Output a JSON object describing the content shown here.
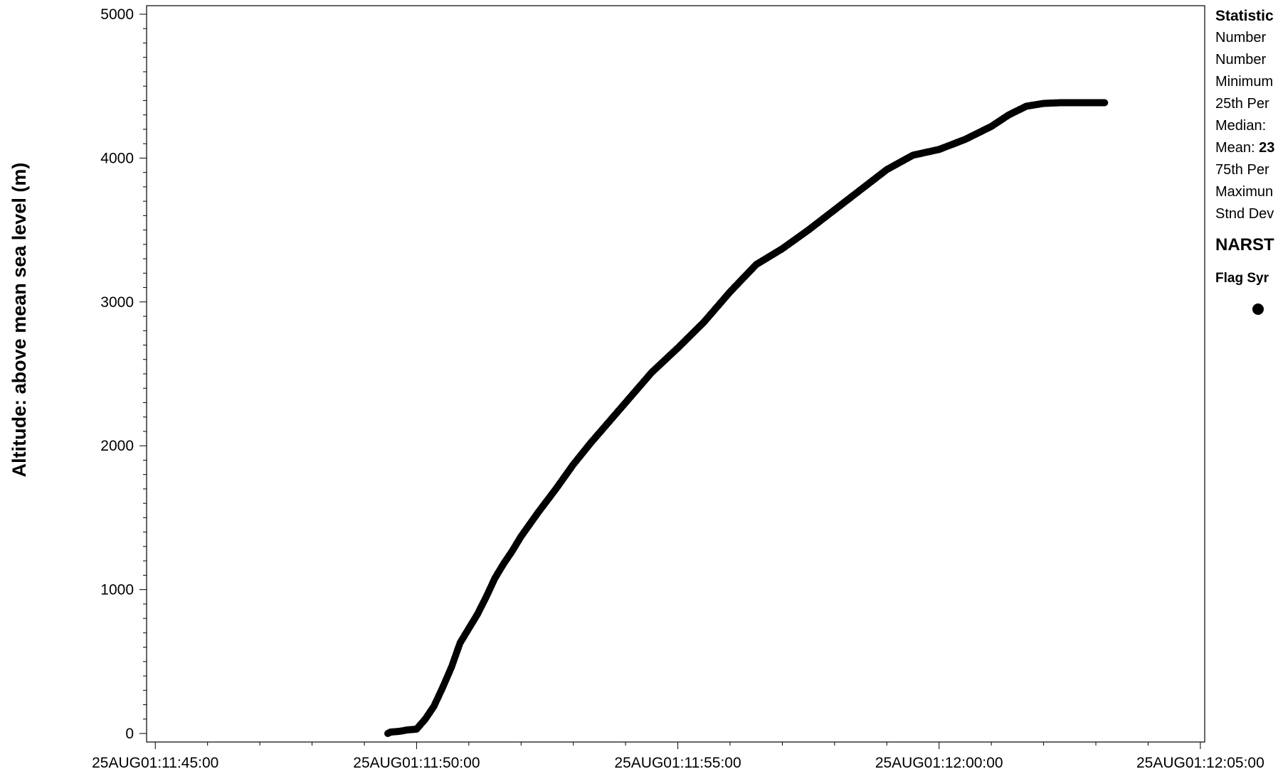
{
  "chart_data": {
    "type": "scatter",
    "ylabel": "Altitude: above mean sea level (m)",
    "xlabel": "",
    "xlim": [
      "25AUG01:11:44:50",
      "25AUG01:12:05:05"
    ],
    "ylim": [
      0,
      5000
    ],
    "x_ticks": [
      "25AUG01:11:45:00",
      "25AUG01:11:50:00",
      "25AUG01:11:55:00",
      "25AUG01:12:00:00",
      "25AUG01:12:05:00"
    ],
    "y_ticks": [
      "0",
      "1000",
      "2000",
      "3000",
      "4000",
      "5000"
    ],
    "grid": false,
    "marker_color": "#000000",
    "series": [
      {
        "x": [
          "25AUG01:11:49:27",
          "25AUG01:11:49:30",
          "25AUG01:11:49:40",
          "25AUG01:11:49:50",
          "25AUG01:11:50:00",
          "25AUG01:11:50:10",
          "25AUG01:11:50:20",
          "25AUG01:11:50:30",
          "25AUG01:11:50:40",
          "25AUG01:11:50:50",
          "25AUG01:11:51:00",
          "25AUG01:11:51:10",
          "25AUG01:11:51:20",
          "25AUG01:11:51:30",
          "25AUG01:11:51:40",
          "25AUG01:11:51:50",
          "25AUG01:11:52:00",
          "25AUG01:11:52:20",
          "25AUG01:11:52:40",
          "25AUG01:11:53:00",
          "25AUG01:11:53:20",
          "25AUG01:11:53:40",
          "25AUG01:11:54:00",
          "25AUG01:11:54:30",
          "25AUG01:11:55:00",
          "25AUG01:11:55:30",
          "25AUG01:11:56:00",
          "25AUG01:11:56:30",
          "25AUG01:11:57:00",
          "25AUG01:11:57:30",
          "25AUG01:11:58:00",
          "25AUG01:11:58:30",
          "25AUG01:11:59:00",
          "25AUG01:11:59:30",
          "25AUG01:12:00:00",
          "25AUG01:12:00:30",
          "25AUG01:12:01:00",
          "25AUG01:12:01:20",
          "25AUG01:12:01:40",
          "25AUG01:12:02:00",
          "25AUG01:12:02:20",
          "25AUG01:12:02:40",
          "25AUG01:12:02:50",
          "25AUG01:12:03:00",
          "25AUG01:12:03:10"
        ],
        "y": [
          0,
          10,
          15,
          25,
          30,
          100,
          190,
          320,
          460,
          630,
          730,
          830,
          950,
          1080,
          1180,
          1270,
          1370,
          1540,
          1700,
          1870,
          2020,
          2160,
          2300,
          2510,
          2680,
          2860,
          3070,
          3260,
          3370,
          3500,
          3640,
          3780,
          3920,
          4020,
          4060,
          4130,
          4220,
          4300,
          4360,
          4380,
          4385,
          4385,
          4385,
          4385,
          4385
        ]
      }
    ]
  },
  "legend": {
    "stats_title": "Statistic",
    "lines": [
      {
        "label": "Number",
        "value": ""
      },
      {
        "label": "Number",
        "value": ""
      },
      {
        "label": "Minimum",
        "value": ""
      },
      {
        "label": "25th Per",
        "value": ""
      },
      {
        "label": "Median:",
        "value": ""
      },
      {
        "label": "Mean:",
        "value": "23"
      },
      {
        "label": "75th Per",
        "value": ""
      },
      {
        "label": "Maximun",
        "value": ""
      },
      {
        "label": "Stnd Dev",
        "value": ""
      }
    ],
    "narst_title": "NARST",
    "flag_title": "Flag Syr",
    "flag_label": ""
  }
}
